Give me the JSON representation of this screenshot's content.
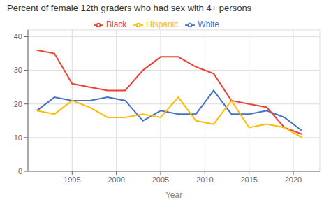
{
  "chart_data": {
    "type": "line",
    "title": "Percent of female 12th graders who had sex with 4+ persons",
    "xlabel": "Year",
    "x": [
      1991,
      1993,
      1995,
      1997,
      1999,
      2001,
      2003,
      2005,
      2007,
      2009,
      2011,
      2013,
      2015,
      2017,
      2019,
      2021
    ],
    "series": [
      {
        "name": "White",
        "color": "#4472c4",
        "values": [
          18,
          22,
          21,
          21,
          22,
          21,
          15,
          18,
          17,
          17,
          24,
          17,
          17,
          18,
          16,
          12
        ]
      },
      {
        "name": "Black",
        "color": "#ea4335",
        "values": [
          36,
          35,
          26,
          25,
          24,
          24,
          30,
          34,
          34,
          31,
          29,
          21,
          20,
          19,
          13,
          11
        ]
      },
      {
        "name": "Hispanic",
        "color": "#fbbc04",
        "values": [
          18,
          17,
          21,
          19,
          16,
          16,
          17,
          16,
          22,
          15,
          14,
          21,
          13,
          14,
          13,
          10
        ]
      }
    ],
    "xlim": [
      1990,
      2023
    ],
    "xticks": [
      1995,
      2000,
      2005,
      2010,
      2015,
      2020
    ],
    "ylim": [
      0,
      42
    ],
    "yticks": [
      0,
      10,
      20,
      30,
      40
    ],
    "grid": true,
    "legend": "top"
  }
}
